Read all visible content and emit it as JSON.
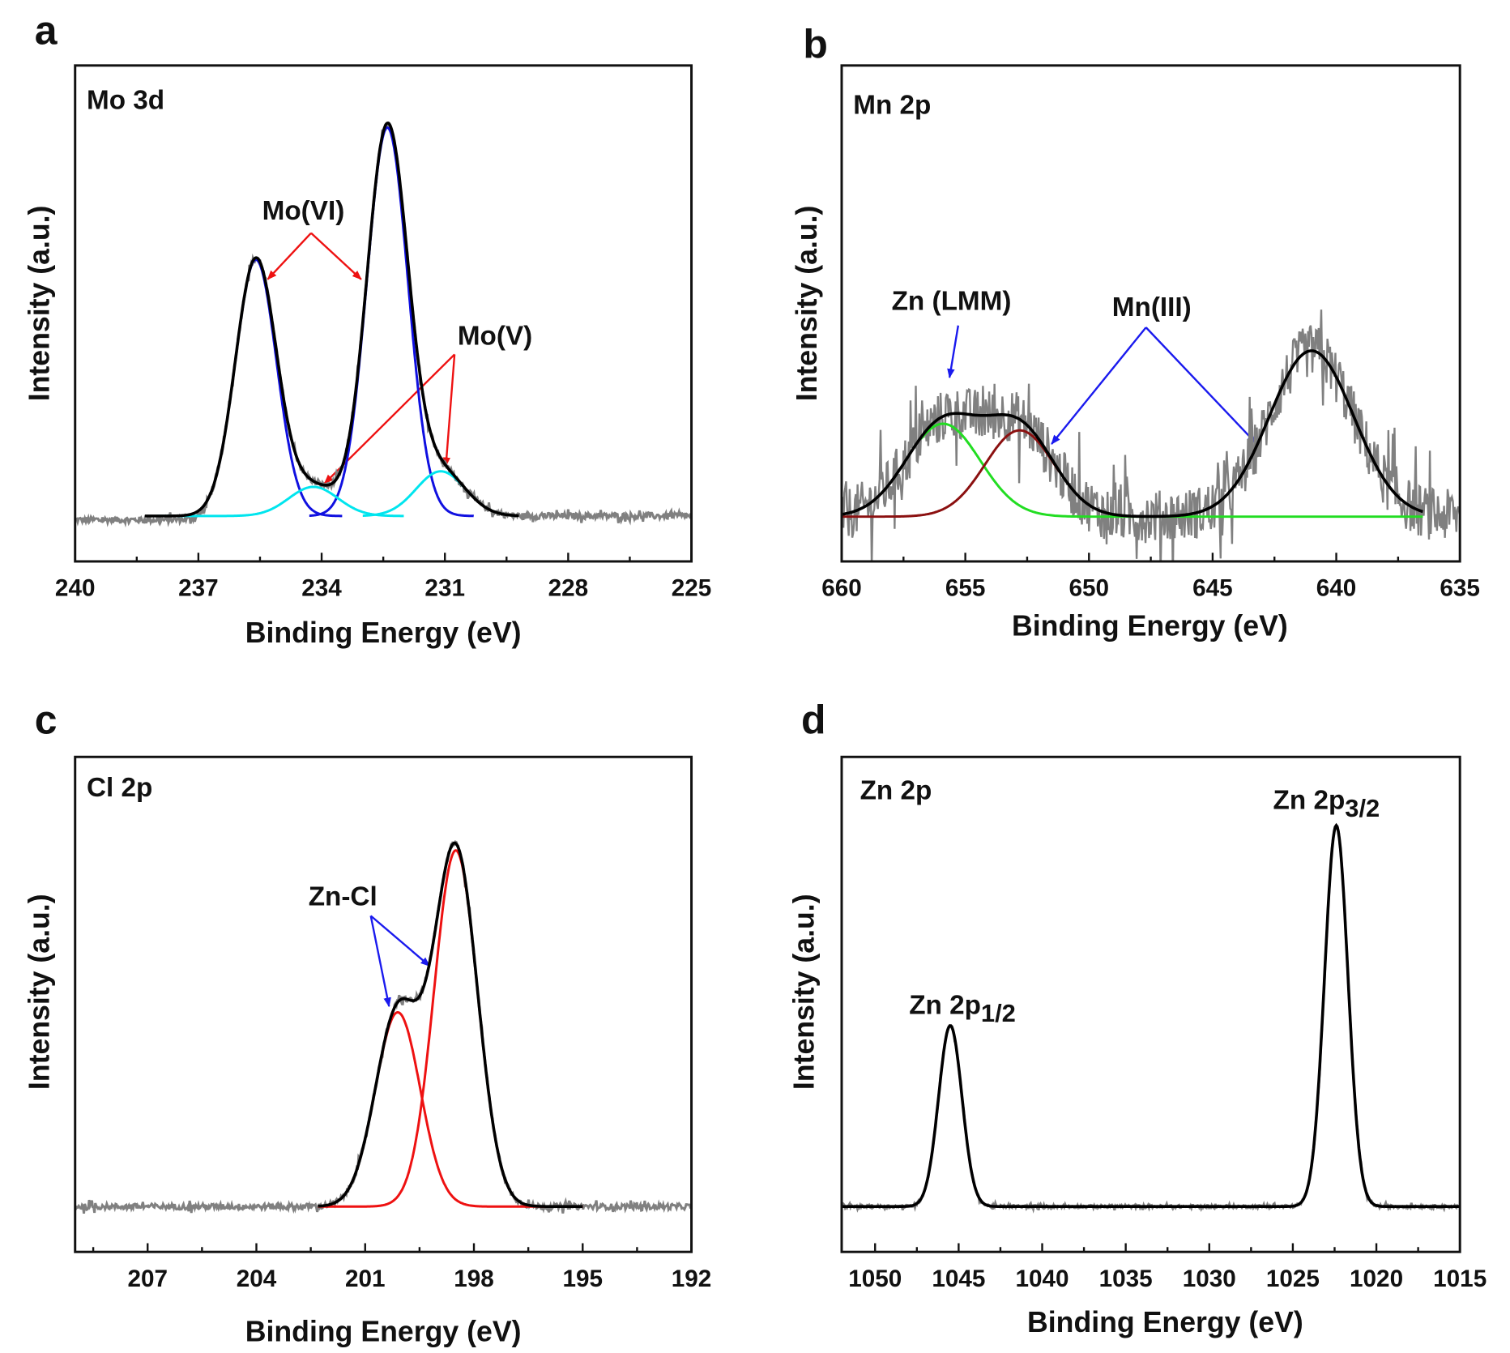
{
  "chart_data": [
    {
      "type": "line",
      "panel_letter": "a",
      "title": "Mo 3d",
      "xlabel": "Binding Energy (eV)",
      "ylabel": "Intensity (a.u.)",
      "xlim": [
        240,
        225
      ],
      "ylim": [
        -0.117,
        1.16
      ],
      "x_major_ticks": [
        240,
        237,
        234,
        231,
        228,
        225
      ],
      "x_minor_step": 1.5,
      "grid": false,
      "raw_color": "#808080",
      "raw_noise": 0.008,
      "envelope": {
        "color": "#000000",
        "range": [
          238.3,
          229.2
        ]
      },
      "components": [
        {
          "label": "Mo(VI)",
          "color": "#1010e0",
          "center": 235.6,
          "height": 0.66,
          "sigma": 0.5,
          "range": [
            237.5,
            233.5
          ]
        },
        {
          "label": "Mo(VI)",
          "color": "#1010e0",
          "center": 232.4,
          "height": 1.0,
          "sigma": 0.5,
          "range": [
            234.3,
            230.3
          ]
        },
        {
          "label": "Mo(V)",
          "color": "#00e5ee",
          "center": 234.2,
          "height": 0.075,
          "sigma": 0.6,
          "range": [
            238.0,
            232.0
          ]
        },
        {
          "label": "Mo(V)",
          "color": "#00e5ee",
          "center": 231.1,
          "height": 0.115,
          "sigma": 0.6,
          "range": [
            233.0,
            229.3
          ]
        }
      ],
      "annotations": [
        {
          "text": "Mo(VI)",
          "color": "#ee1111"
        },
        {
          "text": "Mo(V)",
          "color": "#ee1111"
        }
      ]
    },
    {
      "type": "line",
      "panel_letter": "b",
      "title": "Mn 2p",
      "xlabel": "Binding Energy (eV)",
      "ylabel": "Intensity (a.u.)",
      "xlim": [
        660,
        635
      ],
      "ylim": [
        -0.27,
        2.72
      ],
      "x_major_ticks": [
        660,
        655,
        650,
        645,
        640,
        635
      ],
      "x_minor_step": 2.5,
      "grid": false,
      "raw_color": "#808080",
      "raw_noise": 0.16,
      "envelope": {
        "color": "#000000",
        "range": [
          660,
          636.5
        ]
      },
      "components": [
        {
          "label": "Zn (LMM)",
          "color": "#22dd22",
          "center": 655.9,
          "height": 0.56,
          "sigma": 1.5,
          "range": [
            656.8,
            636.5
          ]
        },
        {
          "label": "Mn(III)",
          "color": "#8b1010",
          "center": 652.8,
          "height": 0.52,
          "sigma": 1.4,
          "range": [
            660,
            651.2
          ]
        },
        {
          "label": "Mn(III)",
          "color": "#000000",
          "center": 641.0,
          "height": 1.0,
          "sigma": 1.7,
          "range": [
            660,
            636.5
          ],
          "hidden": true
        }
      ],
      "annotations": [
        {
          "text": "Zn (LMM)",
          "color": "#1a1aee"
        },
        {
          "text": "Mn(III)",
          "color": "#1a1aee"
        }
      ]
    },
    {
      "type": "line",
      "panel_letter": "c",
      "title": "Cl 2p",
      "xlabel": "Binding Energy (eV)",
      "ylabel": "Intensity (a.u.)",
      "xlim": [
        209,
        192
      ],
      "ylim": [
        -0.126,
        1.25
      ],
      "x_major_ticks": [
        207,
        204,
        201,
        198,
        195,
        192
      ],
      "x_minor_step": 1.5,
      "grid": false,
      "raw_color": "#808080",
      "raw_noise": 0.008,
      "envelope": {
        "color": "#000000",
        "range": [
          202.3,
          195.0
        ]
      },
      "components": [
        {
          "label": "Zn-Cl",
          "color": "#ee1111",
          "center": 200.1,
          "height": 0.54,
          "sigma": 0.62,
          "range": [
            202.3,
            195.0
          ]
        },
        {
          "label": "Zn-Cl",
          "color": "#ee1111",
          "center": 198.5,
          "height": 0.99,
          "sigma": 0.6,
          "range": [
            202.3,
            195.0
          ]
        }
      ],
      "annotations": [
        {
          "text": "Zn-Cl",
          "color": "#1a1aee"
        }
      ]
    },
    {
      "type": "line",
      "panel_letter": "d",
      "title": "Zn 2p",
      "xlabel": "Binding Energy (eV)",
      "ylabel": "Intensity (a.u.)",
      "xlim": [
        1052,
        1015
      ],
      "ylim": [
        -0.119,
        1.18
      ],
      "x_major_ticks": [
        1050,
        1045,
        1040,
        1035,
        1030,
        1025,
        1020,
        1015
      ],
      "x_minor_step": 2.5,
      "grid": false,
      "raw_color": "#808080",
      "raw_noise": 0.004,
      "envelope": {
        "color": "#000000",
        "range": [
          1052,
          1015
        ]
      },
      "components": [
        {
          "label": "Zn 2p1/2",
          "color": "#dd22ee",
          "center": 1045.5,
          "height": 0.475,
          "sigma": 0.7,
          "range": [
            1049.0,
            1042.0
          ]
        },
        {
          "label": "Zn 2p3/2",
          "color": "#dd22ee",
          "center": 1022.4,
          "height": 1.0,
          "sigma": 0.7,
          "range": [
            1026.0,
            1019.0
          ]
        }
      ],
      "annotations": [
        {
          "text": "Zn 2p",
          "sub": "1/2",
          "color": "#111111"
        },
        {
          "text": "Zn 2p",
          "sub": "3/2",
          "color": "#111111"
        }
      ]
    }
  ]
}
